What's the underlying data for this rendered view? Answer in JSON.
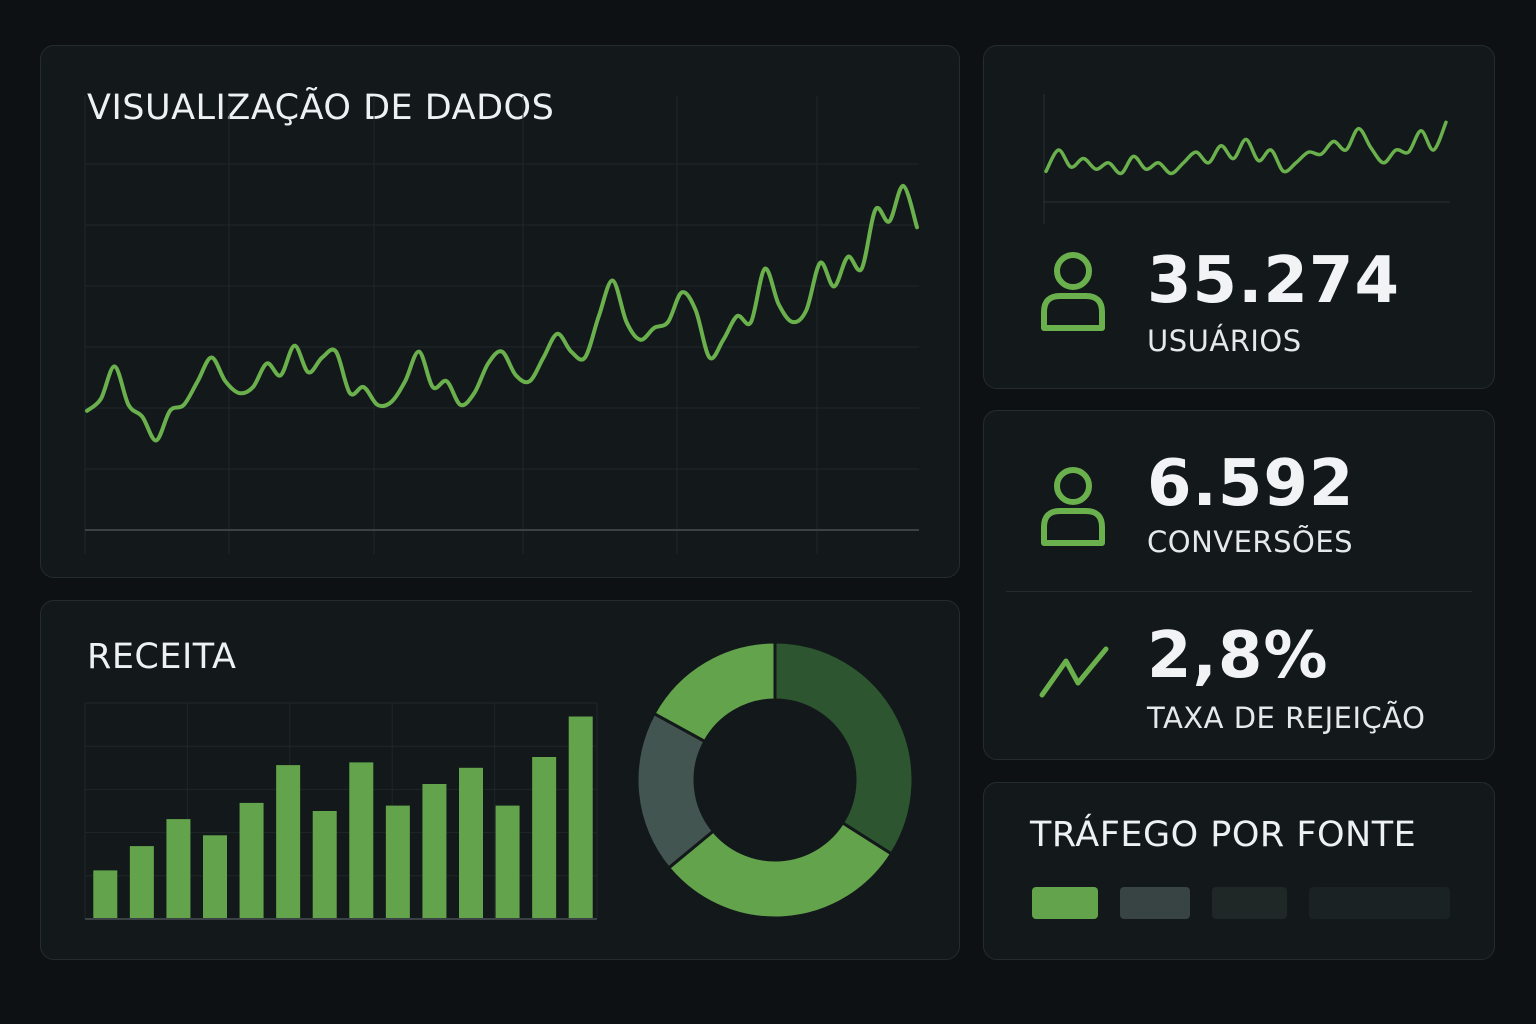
{
  "main_chart": {
    "title": "VISUALIZAÇÃO DE DADOS",
    "chart_data": {
      "type": "line",
      "title": "VISUALIZAÇÃO DE DADOS",
      "values": [
        20,
        24,
        35,
        22,
        18,
        10,
        20,
        22,
        30,
        38,
        30,
        26,
        28,
        36,
        32,
        42,
        33,
        38,
        40,
        26,
        28,
        22,
        23,
        30,
        40,
        28,
        30,
        22,
        26,
        36,
        40,
        32,
        30,
        38,
        46,
        40,
        38,
        52,
        64,
        50,
        44,
        48,
        50,
        60,
        54,
        38,
        44,
        52,
        50,
        68,
        56,
        50,
        54,
        70,
        62,
        72,
        68,
        88,
        84,
        96,
        82
      ],
      "ylim": [
        0,
        100
      ],
      "color": "#6ab04c"
    }
  },
  "revenue": {
    "title": "RECEITA",
    "chart_data": [
      {
        "type": "bar",
        "values": [
          18,
          27,
          37,
          31,
          43,
          57,
          40,
          58,
          42,
          50,
          56,
          42,
          60,
          75
        ],
        "ylim": [
          0,
          80
        ],
        "color": "#62a34b"
      },
      {
        "type": "pie",
        "values": [
          34,
          30,
          19,
          17
        ],
        "colors": [
          "#2c5530",
          "#62a34b",
          "#435551",
          "#62a34b"
        ]
      }
    ]
  },
  "users_card": {
    "value": "35.274",
    "label": "USUÁRIOS",
    "icon": "user-icon",
    "sparkline": {
      "type": "line",
      "values": [
        10,
        30,
        14,
        22,
        12,
        18,
        8,
        24,
        12,
        18,
        8,
        18,
        28,
        18,
        34,
        22,
        40,
        20,
        30,
        10,
        18,
        28,
        26,
        38,
        30,
        50,
        32,
        18,
        30,
        28,
        48,
        30,
        56
      ],
      "ylim": [
        0,
        60
      ],
      "color": "#6ab04c"
    }
  },
  "conversions_card": {
    "value": "6.592",
    "label": "CONVERSÕES",
    "icon": "user-icon",
    "bounce_value": "2,8%",
    "bounce_label": "TAXA DE REJEIÇÃO",
    "bounce_icon": "trend-line-icon"
  },
  "traffic": {
    "title": "TRÁFEGO POR FONTE",
    "sources": [
      {
        "color": "#62a34b",
        "share": 0.16
      },
      {
        "color": "#374443",
        "share": 0.17
      },
      {
        "color": "#1f2727",
        "share": 0.18
      },
      {
        "color": "#1b2223",
        "share": 0.34
      }
    ]
  },
  "colors": {
    "accent": "#6ab04c",
    "background": "#0d1114",
    "card": "#13181b"
  }
}
